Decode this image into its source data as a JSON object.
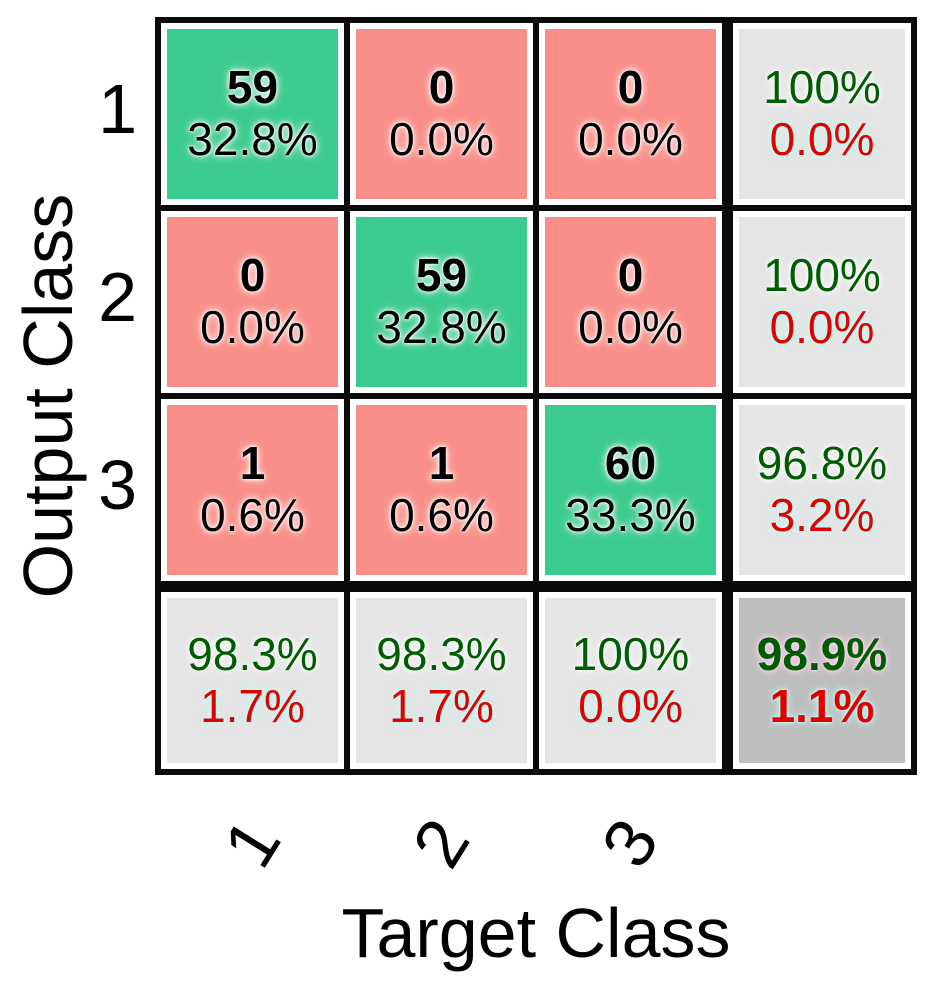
{
  "figure": {
    "background": "#ffffff"
  },
  "chart_data": {
    "type": "heatmap",
    "subtype": "confusion_matrix",
    "xlabel": "Target Class",
    "ylabel": "Output Class",
    "x_tick_labels": [
      "1",
      "2",
      "3"
    ],
    "y_tick_labels": [
      "1",
      "2",
      "3"
    ],
    "matrix": {
      "counts": [
        [
          59,
          0,
          0
        ],
        [
          0,
          59,
          0
        ],
        [
          1,
          1,
          60
        ]
      ],
      "percents": [
        [
          "32.8%",
          "0.0%",
          "0.0%"
        ],
        [
          "0.0%",
          "32.8%",
          "0.0%"
        ],
        [
          "0.6%",
          "0.6%",
          "33.3%"
        ]
      ]
    },
    "row_summary": [
      {
        "positive": "100%",
        "negative": "0.0%"
      },
      {
        "positive": "100%",
        "negative": "0.0%"
      },
      {
        "positive": "96.8%",
        "negative": "3.2%"
      }
    ],
    "col_summary": [
      {
        "positive": "98.3%",
        "negative": "1.7%"
      },
      {
        "positive": "98.3%",
        "negative": "1.7%"
      },
      {
        "positive": "100%",
        "negative": "0.0%"
      }
    ],
    "overall": {
      "positive": "98.9%",
      "negative": "1.1%"
    },
    "colors": {
      "diagonal_fill": "#3ccb8e",
      "off_diagonal_fill": "#f98f88",
      "summary_fill": "#e5e5e5",
      "overall_fill": "#bebebe",
      "positive_text": "#005c00",
      "negative_text": "#e00000",
      "count_text": "#000000",
      "grid_line": "#0a0a0a"
    },
    "layout": {
      "legend": "none",
      "grid_rows": 4,
      "grid_cols": 4,
      "x_tick_rotation_deg": -58
    }
  }
}
